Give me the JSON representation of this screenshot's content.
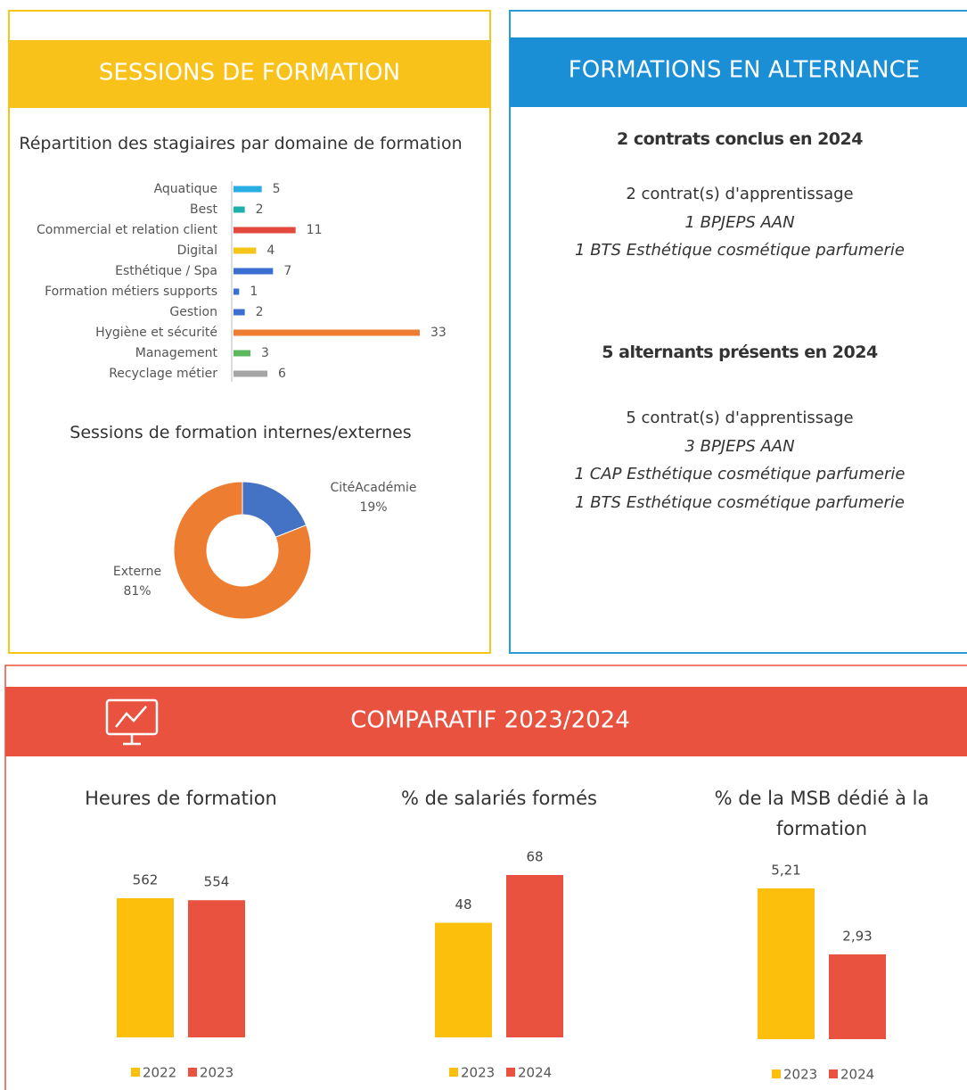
{
  "sessions": {
    "title": "SESSIONS DE FORMATION"
  },
  "alternance": {
    "title": "FORMATIONS EN ALTERNANCE",
    "blocks": [
      {
        "heading": "2 contrats conclus en 2024",
        "lines": [
          "2 contrat(s) d'apprentissage",
          "1 BPJEPS AAN",
          "1 BTS Esthétique cosmétique parfumerie"
        ]
      },
      {
        "heading": "5 alternants présents en 2024",
        "lines": [
          "5 contrat(s) d'apprentissage",
          "3 BPJEPS AAN",
          "1 CAP Esthétique cosmétique parfumerie",
          "1 BTS Esthétique cosmétique parfumerie"
        ]
      }
    ]
  },
  "comparatif": {
    "title": "COMPARATIF 2023/2024"
  },
  "chart_data": [
    {
      "type": "hbar",
      "title": "Répartition des stagiaires par domaine de formation",
      "categories": [
        "Aquatique",
        "Best",
        "Commercial et relation client",
        "Digital",
        "Esthétique / Spa",
        "Formation métiers supports",
        "Gestion",
        "Hygiène et sécurité",
        "Management",
        "Recyclage métier"
      ],
      "values": [
        5,
        2,
        11,
        4,
        7,
        1,
        2,
        33,
        3,
        6
      ],
      "colors": [
        "#29aee3",
        "#1fb0ad",
        "#e2483b",
        "#f5c518",
        "#3a6fd2",
        "#3a6fd2",
        "#3a6fd2",
        "#ed7d31",
        "#5cb85c",
        "#a5a5a5"
      ]
    },
    {
      "type": "donut",
      "title": "Sessions de formation internes/externes",
      "categories": [
        "CitéAcadémie",
        "Externe"
      ],
      "values": [
        19,
        81
      ],
      "value_labels": [
        "19%",
        "81%"
      ],
      "colors": [
        "#4472c4",
        "#ed7d31"
      ]
    },
    {
      "type": "bar",
      "title": "Heures de formation",
      "categories": [
        "2022",
        "2023"
      ],
      "values": [
        562,
        554
      ],
      "colors": [
        "#fbbf0c",
        "#e8523f"
      ]
    },
    {
      "type": "bar",
      "title": "% de salariés formés",
      "categories": [
        "2023",
        "2024"
      ],
      "values": [
        48,
        68
      ],
      "colors": [
        "#fbbf0c",
        "#e8523f"
      ]
    },
    {
      "type": "bar",
      "title": "% de la MSB dédié à la formation",
      "categories": [
        "2023",
        "2024"
      ],
      "values": [
        5.21,
        2.93
      ],
      "value_labels": [
        "5,21",
        "2,93"
      ],
      "colors": [
        "#fbbf0c",
        "#e8523f"
      ]
    }
  ]
}
